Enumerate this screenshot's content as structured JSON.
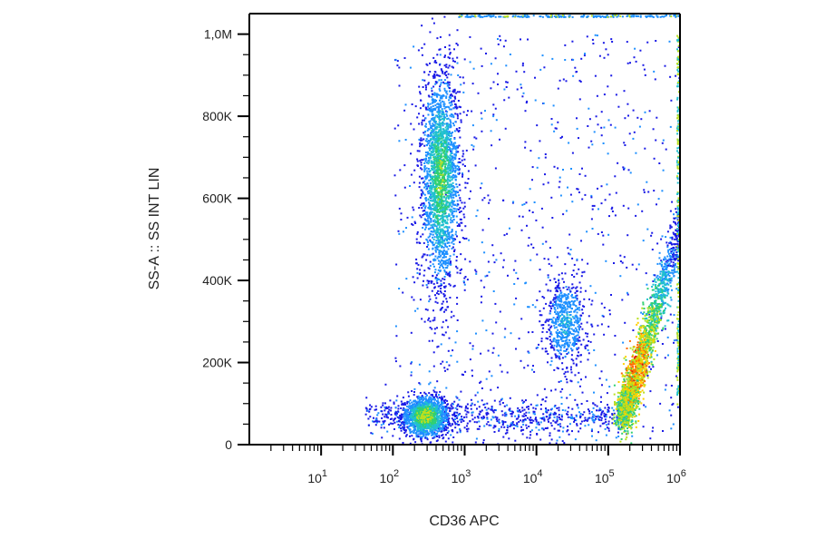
{
  "chart_data": {
    "type": "scatter",
    "subtype": "flow-cytometry-density-dot-plot",
    "title": "",
    "xlabel": "CD36 APC",
    "ylabel": "SS-A :: SS INT LIN",
    "x_scale": "log",
    "y_scale": "linear",
    "xlim": [
      1,
      1000000
    ],
    "ylim": [
      0,
      1050000
    ],
    "x_ticks": [
      {
        "value": 10,
        "base": "10",
        "exp": "1"
      },
      {
        "value": 100,
        "base": "10",
        "exp": "2"
      },
      {
        "value": 1000,
        "base": "10",
        "exp": "3"
      },
      {
        "value": 10000,
        "base": "10",
        "exp": "4"
      },
      {
        "value": 100000,
        "base": "10",
        "exp": "5"
      },
      {
        "value": 1000000,
        "base": "10",
        "exp": "6"
      }
    ],
    "y_ticks": [
      {
        "value": 0,
        "label": "0"
      },
      {
        "value": 200000,
        "label": "200K"
      },
      {
        "value": 400000,
        "label": "400K"
      },
      {
        "value": 600000,
        "label": "600K"
      },
      {
        "value": 800000,
        "label": "800K"
      },
      {
        "value": 1000000,
        "label": "1,0M"
      }
    ],
    "grid": false,
    "legend": "none",
    "density_colors": [
      "#1a1ae6",
      "#1e90ff",
      "#20c0d0",
      "#30d070",
      "#b8e020",
      "#ffd000",
      "#ff6a00",
      "#e01010"
    ],
    "populations": [
      {
        "x_center": 450,
        "y_center": 650000,
        "x_spread_decades": 0.13,
        "y_spread": 130000,
        "count": 2200,
        "peak_level": 4
      },
      {
        "x_center": 280,
        "y_center": 70000,
        "x_spread_decades": 0.16,
        "y_spread": 25000,
        "count": 1400,
        "peak_level": 5
      },
      {
        "x_center": 25000,
        "y_center": 300000,
        "x_spread_decades": 0.14,
        "y_spread": 55000,
        "count": 600,
        "peak_level": 2
      },
      {
        "x_center": 400000,
        "y_center": 250000,
        "x_spread_decades": 0.2,
        "y_spread": 110000,
        "count": 2400,
        "peak_level": 7,
        "shape": "diagonal-band"
      }
    ]
  }
}
